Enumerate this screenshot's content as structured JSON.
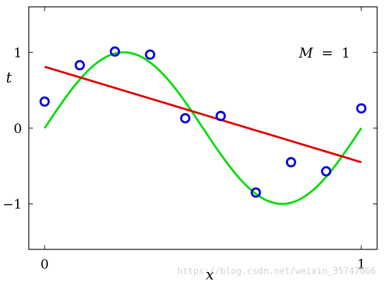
{
  "chart_data": {
    "type": "line",
    "xlabel": "x",
    "ylabel": "t",
    "xlim": [
      -0.05,
      1.05
    ],
    "ylim": [
      -1.6,
      1.6
    ],
    "x_ticks": [
      0,
      1
    ],
    "x_tick_labels": [
      "0",
      "1"
    ],
    "y_ticks": [
      -1,
      0,
      1
    ],
    "y_tick_labels": [
      "−1",
      "0",
      "1"
    ],
    "grid": false,
    "annotation": {
      "var": "M",
      "op": "=",
      "value": "1"
    },
    "series": [
      {
        "type": "line",
        "color": "#00dd00",
        "x": [
          0,
          0.05,
          0.1,
          0.15,
          0.2,
          0.25,
          0.3,
          0.35,
          0.4,
          0.45,
          0.5,
          0.55,
          0.6,
          0.65,
          0.7,
          0.75,
          0.8,
          0.85,
          0.9,
          0.95,
          1
        ],
        "y": [
          0,
          0.309,
          0.588,
          0.809,
          0.951,
          1,
          0.951,
          0.809,
          0.588,
          0.309,
          0,
          -0.309,
          -0.588,
          -0.809,
          -0.951,
          -1,
          -0.951,
          -0.809,
          -0.588,
          -0.309,
          0
        ]
      },
      {
        "type": "line",
        "color": "#dd0000",
        "x": [
          0,
          1
        ],
        "y": [
          0.81,
          -0.45
        ]
      },
      {
        "type": "scatter",
        "color": "#0000dd",
        "x": [
          0,
          0.111,
          0.222,
          0.333,
          0.444,
          0.556,
          0.667,
          0.778,
          0.889,
          1
        ],
        "y": [
          0.35,
          0.83,
          1.01,
          0.97,
          0.13,
          0.16,
          -0.85,
          -0.45,
          -0.57,
          0.26
        ]
      }
    ]
  },
  "watermark": "https://blog.csdn.net/weixin_35747066"
}
